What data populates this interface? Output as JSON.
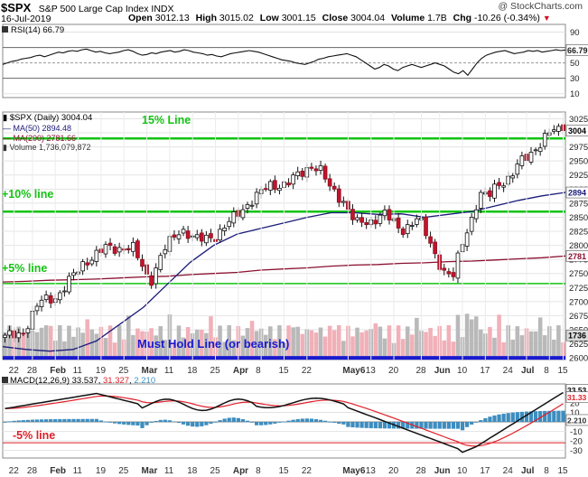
{
  "header": {
    "symbol": "$SPX",
    "name": "S&P 500 Large Cap Index INDX",
    "watermark": "@ StockCharts.com",
    "date": "16-Jul-2019",
    "open_label": "Open",
    "open": "3012.13",
    "high_label": "High",
    "high": "3015.02",
    "low_label": "Low",
    "low": "3001.15",
    "close_label": "Close",
    "close": "3004.04",
    "volume_label": "Volume",
    "volume": "1.7B",
    "chg_label": "Chg",
    "chg": "-10.26 (-0.34%)",
    "chg_icon": "down-triangle-icon"
  },
  "rsi": {
    "label": "RSI(14) 66.79",
    "ticks": [
      "90",
      "70",
      "50",
      "30",
      "10"
    ],
    "current": "66.79",
    "values": [
      48,
      50,
      52,
      53,
      55,
      56,
      57,
      59,
      60,
      58,
      60,
      62,
      64,
      63,
      65,
      66,
      65,
      67,
      68,
      66,
      64,
      65,
      63,
      62,
      63,
      64,
      66,
      67,
      65,
      62,
      60,
      61,
      63,
      62,
      64,
      65,
      66,
      64,
      65,
      67,
      66,
      64,
      63,
      62,
      60,
      61,
      59,
      58,
      60,
      62,
      63,
      64,
      65,
      66,
      65,
      64,
      62,
      60,
      58,
      56,
      54,
      53,
      52,
      50,
      49,
      48,
      50,
      52,
      55,
      56,
      58,
      59,
      60,
      61,
      62,
      60,
      58,
      54,
      50,
      46,
      42,
      44,
      48,
      46,
      42,
      40,
      44,
      46,
      48,
      46,
      44,
      46,
      48,
      50,
      48,
      46,
      42,
      38,
      36,
      40,
      34,
      42,
      50,
      56,
      60,
      62,
      64,
      65,
      66,
      64,
      62,
      63,
      64,
      66,
      65,
      66,
      64,
      65,
      66,
      67,
      66,
      66.79
    ]
  },
  "price_panel": {
    "label": "$SPX (Daily) 3004.04",
    "ma50_label": "MA(50) 2894.48",
    "ma200_label": "MA(200) 2781.66",
    "volume_label": "Volume 1,736,079,872",
    "ticks": [
      "3025",
      "3000",
      "2975",
      "2950",
      "2925",
      "2900",
      "2875",
      "2850",
      "2825",
      "2800",
      "2775",
      "2750",
      "2725",
      "2700",
      "2675",
      "2650",
      "2625",
      "2600"
    ],
    "close_badge": "3004",
    "ma50_badge": "2894",
    "ma200_badge": "2781",
    "vol_badge": "1736"
  },
  "annotations": {
    "line15": "15% Line",
    "line10": "+10% line",
    "line5": "+5% line",
    "must_hold": "Must Hold Line (or bearish)",
    "minus5": "-5% line"
  },
  "x_axis": [
    "22",
    "28",
    "Feb",
    "11",
    "19",
    "25",
    "Mar",
    "11",
    "18",
    "25",
    "Apr",
    "8",
    "15",
    "22",
    "May6",
    "13",
    "20",
    "28",
    "Jun",
    "10",
    "17",
    "24",
    "Jul",
    "8",
    "15"
  ],
  "macd": {
    "label_prefix": "MACD(12,26,9)",
    "macd_value": "33.537",
    "signal_value": "31.327",
    "hist_value": "2.210",
    "ticks": [
      "30",
      "20",
      "10",
      "0",
      "-10",
      "-20",
      "-30"
    ],
    "badge_macd": "33.53",
    "badge_signal": "31.33",
    "badge_hist": "2.210"
  },
  "colors": {
    "green": "#13c313",
    "red": "#e0202a",
    "blue": "#1a1ad0",
    "ma50": "#1b1b7a",
    "ma200": "#8a1030",
    "up_volume": "#b9b9b9",
    "down_volume": "#f1b0b8",
    "histogram": "#3d8dbf"
  },
  "chart_data": {
    "type": "line",
    "title": "$SPX (Daily) 3004.04",
    "x": [
      "2019-01-22",
      "2019-01-28",
      "2019-02-01",
      "2019-02-11",
      "2019-02-19",
      "2019-02-25",
      "2019-03-01",
      "2019-03-11",
      "2019-03-18",
      "2019-03-25",
      "2019-04-01",
      "2019-04-08",
      "2019-04-15",
      "2019-04-22",
      "2019-05-06",
      "2019-05-13",
      "2019-05-20",
      "2019-05-28",
      "2019-06-03",
      "2019-06-10",
      "2019-06-17",
      "2019-06-24",
      "2019-07-01",
      "2019-07-08",
      "2019-07-16"
    ],
    "series": [
      {
        "name": "$SPX",
        "values": [
          2633,
          2643,
          2706,
          2709,
          2780,
          2796,
          2803,
          2784,
          2822,
          2818,
          2867,
          2895,
          2905,
          2926,
          2932,
          2812,
          2826,
          2802,
          2744,
          2887,
          2920,
          2913,
          2964,
          2976,
          3004
        ]
      },
      {
        "name": "MA(50)",
        "values": [
          2620,
          2615,
          2612,
          2615,
          2630,
          2660,
          2690,
          2730,
          2770,
          2800,
          2820,
          2830,
          2840,
          2850,
          2858,
          2858,
          2855,
          2856,
          2850,
          2855,
          2860,
          2870,
          2880,
          2888,
          2894
        ]
      },
      {
        "name": "MA(200)",
        "values": [
          2735,
          2736,
          2738,
          2739,
          2740,
          2742,
          2744,
          2745,
          2748,
          2750,
          2752,
          2756,
          2758,
          2760,
          2763,
          2765,
          2766,
          2768,
          2769,
          2771,
          2772,
          2774,
          2776,
          2778,
          2781
        ]
      }
    ],
    "ylim": [
      2600,
      3040
    ],
    "reference_lines": [
      {
        "label": "15% Line",
        "value": 2990
      },
      {
        "label": "+10% line",
        "value": 2860
      },
      {
        "label": "+5% line",
        "value": 2732
      },
      {
        "label": "Must Hold Line (or bearish)",
        "value": 2600
      }
    ],
    "grid": true
  }
}
